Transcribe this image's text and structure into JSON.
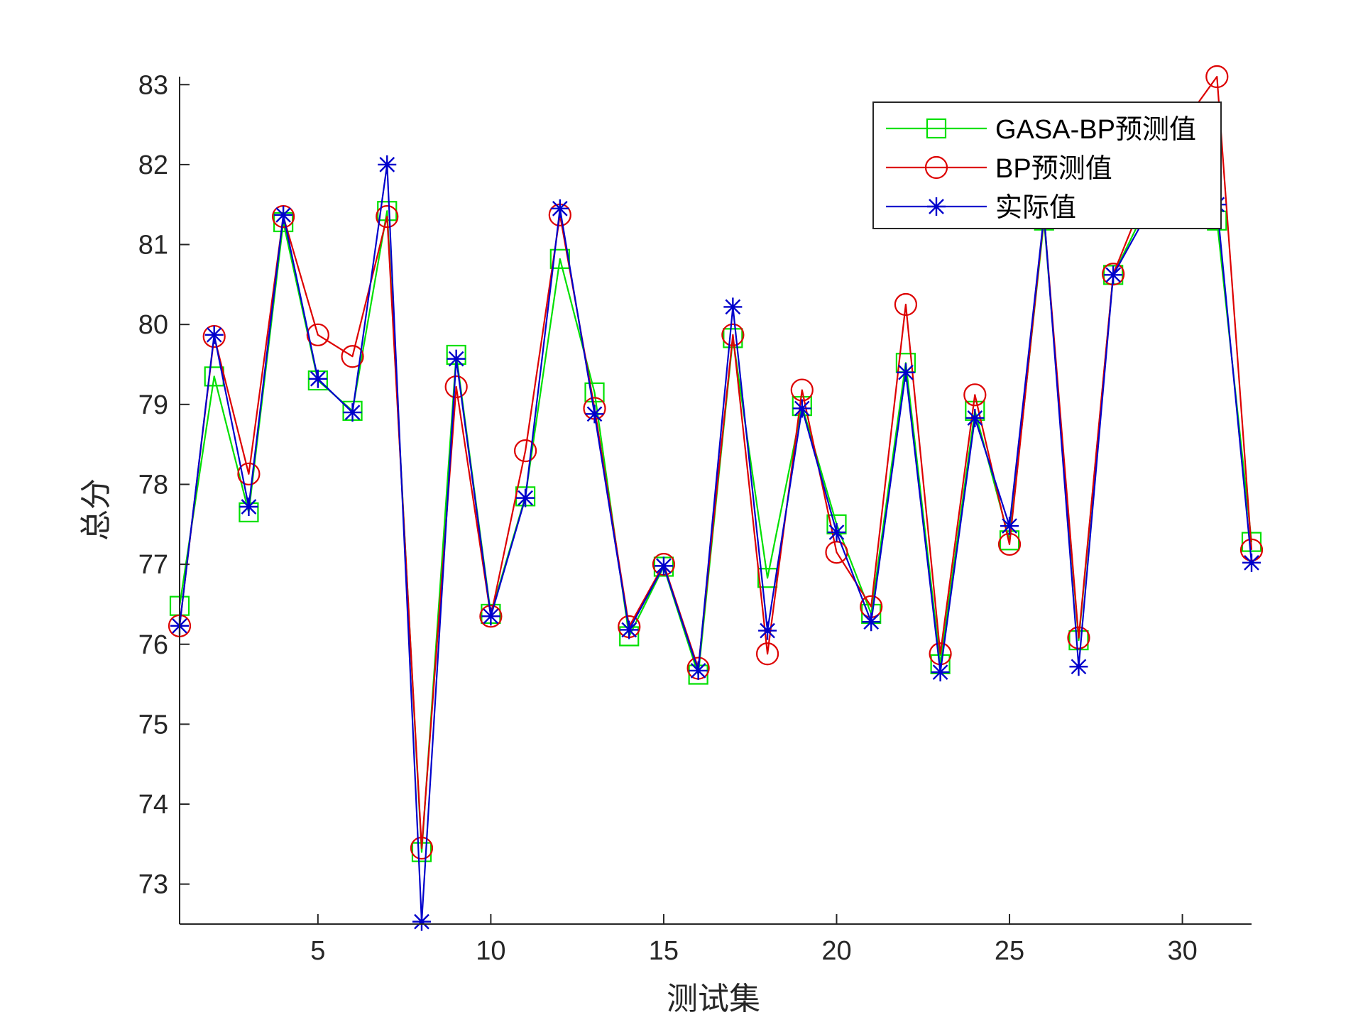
{
  "chart_data": {
    "type": "line",
    "xlabel": "测试集",
    "ylabel": "总分",
    "xlim": [
      1,
      32
    ],
    "ylim": [
      72.5,
      83.1
    ],
    "xticks": [
      5,
      10,
      15,
      20,
      25,
      30
    ],
    "yticks": [
      73,
      74,
      75,
      76,
      77,
      78,
      79,
      80,
      81,
      82,
      83
    ],
    "grid": false,
    "legend_position": "top-right",
    "x": [
      1,
      2,
      3,
      4,
      5,
      6,
      7,
      8,
      9,
      10,
      11,
      12,
      13,
      14,
      15,
      16,
      17,
      18,
      19,
      20,
      21,
      22,
      23,
      24,
      25,
      26,
      27,
      28,
      29,
      30,
      31,
      32
    ],
    "series": [
      {
        "name": "GASA-BP预测值",
        "color": "#00e000",
        "marker": "square",
        "values": [
          76.48,
          79.35,
          77.65,
          81.28,
          79.3,
          78.92,
          81.42,
          73.4,
          79.62,
          76.38,
          77.85,
          80.82,
          79.15,
          76.1,
          76.97,
          75.62,
          79.83,
          76.83,
          78.98,
          77.5,
          76.38,
          79.52,
          75.75,
          78.92,
          77.3,
          81.3,
          76.05,
          80.62,
          81.5,
          82.2,
          81.3,
          77.28
        ]
      },
      {
        "name": "BP预测值",
        "color": "#dd0000",
        "marker": "circle",
        "values": [
          76.23,
          79.85,
          78.13,
          81.35,
          79.87,
          79.6,
          81.35,
          73.45,
          79.22,
          76.35,
          78.42,
          81.37,
          78.95,
          76.22,
          77.0,
          75.7,
          79.87,
          75.88,
          79.18,
          77.15,
          76.47,
          80.25,
          75.88,
          79.12,
          77.25,
          81.35,
          76.08,
          80.63,
          81.7,
          82.5,
          83.1,
          77.18
        ]
      },
      {
        "name": "实际值",
        "color": "#0000cc",
        "marker": "star",
        "values": [
          76.23,
          79.87,
          77.72,
          81.37,
          79.32,
          78.9,
          82.0,
          72.53,
          79.57,
          76.35,
          77.83,
          81.45,
          78.88,
          76.18,
          76.98,
          75.67,
          80.22,
          76.17,
          78.95,
          77.4,
          76.28,
          79.4,
          75.65,
          78.83,
          77.48,
          81.37,
          75.72,
          80.62,
          81.4,
          82.0,
          81.5,
          77.02
        ]
      }
    ]
  }
}
